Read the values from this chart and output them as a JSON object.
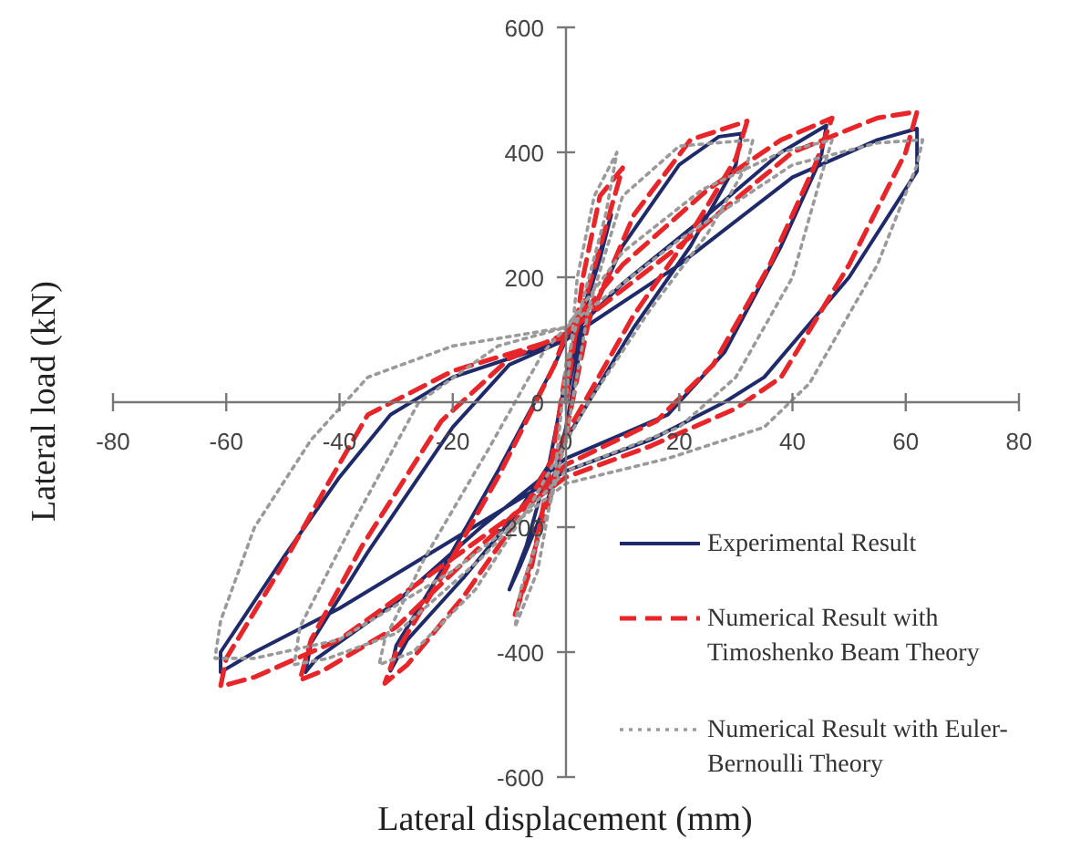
{
  "chart_data": {
    "type": "line",
    "xlabel": "Lateral displacement (mm)",
    "ylabel": "Lateral load (kN)",
    "xlim": [
      -80,
      80
    ],
    "ylim": [
      -600,
      600
    ],
    "xticks": [
      -80,
      -60,
      -40,
      -20,
      0,
      20,
      40,
      60,
      80
    ],
    "yticks": [
      -600,
      -400,
      -200,
      0,
      200,
      400,
      600
    ],
    "grid": false,
    "legend": "bottom right",
    "marker": "none",
    "series": [
      {
        "name": "Experimental Result",
        "color": "#1f2a6b",
        "line_style": "solid",
        "x": [
          0,
          4,
          8,
          6,
          2,
          0,
          -3,
          -7,
          -10,
          -8,
          -3,
          0,
          3,
          10,
          20,
          27,
          31,
          30,
          22,
          12,
          2,
          -8,
          -18,
          -28,
          -31,
          -30,
          -22,
          -12,
          -2,
          0,
          10,
          25,
          38,
          46,
          45,
          38,
          28,
          18,
          0,
          -15,
          -30,
          -44,
          -46,
          -45,
          -35,
          -20,
          -10,
          0,
          20,
          40,
          55,
          62,
          62,
          50,
          35,
          28,
          15,
          0,
          -20,
          -40,
          -55,
          -61,
          -61,
          -50,
          -40,
          -31,
          -20,
          0
        ],
        "values": [
          0,
          180,
          300,
          230,
          110,
          40,
          -100,
          -230,
          -300,
          -260,
          -150,
          -40,
          110,
          250,
          380,
          425,
          430,
          380,
          250,
          120,
          -30,
          -170,
          -280,
          -380,
          -430,
          -390,
          -270,
          -110,
          60,
          100,
          190,
          300,
          400,
          443,
          390,
          250,
          80,
          -20,
          -90,
          -200,
          -320,
          -410,
          -432,
          -385,
          -240,
          -40,
          60,
          100,
          220,
          360,
          420,
          438,
          370,
          200,
          40,
          0,
          -60,
          -110,
          -220,
          -330,
          -400,
          -432,
          -400,
          -250,
          -120,
          -20,
          40,
          100
        ]
      },
      {
        "name": "Numerical Result with Timoshenko Beam Theory",
        "color": "#e8262a",
        "line_style": "dashed",
        "x": [
          0,
          3,
          6,
          10,
          7,
          2,
          0,
          -3,
          -6,
          -9,
          -7,
          -3,
          0,
          4,
          12,
          22,
          32,
          30,
          22,
          12,
          2,
          -8,
          -18,
          -28,
          -32,
          -30,
          -22,
          -12,
          -2,
          0,
          10,
          25,
          38,
          47,
          44,
          36,
          26,
          16,
          0,
          -15,
          -30,
          -43,
          -47,
          -45,
          -36,
          -22,
          -10,
          0,
          20,
          40,
          55,
          62,
          60,
          50,
          38,
          30,
          15,
          0,
          -20,
          -40,
          -55,
          -61,
          -60,
          -50,
          -42,
          -35,
          -20,
          0
        ],
        "values": [
          0,
          200,
          330,
          375,
          280,
          120,
          50,
          -120,
          -260,
          -340,
          -280,
          -160,
          -50,
          130,
          300,
          420,
          450,
          390,
          270,
          140,
          -20,
          -180,
          -310,
          -420,
          -450,
          -400,
          -280,
          -120,
          60,
          110,
          220,
          340,
          420,
          455,
          380,
          220,
          60,
          -30,
          -100,
          -230,
          -360,
          -430,
          -445,
          -380,
          -230,
          -30,
          70,
          110,
          250,
          400,
          455,
          465,
          400,
          220,
          40,
          -10,
          -70,
          -120,
          -250,
          -380,
          -440,
          -455,
          -410,
          -260,
          -130,
          -20,
          50,
          105
        ]
      },
      {
        "name": "Numerical Result with Euler-Bernoulli Theory",
        "color": "#9a9a9a",
        "line_style": "dotted",
        "x": [
          0,
          2,
          5,
          9,
          7,
          2,
          0,
          -2,
          -5,
          -9,
          -8,
          -3,
          0,
          4,
          10,
          20,
          33,
          32,
          25,
          15,
          4,
          -6,
          -16,
          -27,
          -33,
          -32,
          -25,
          -14,
          -4,
          0,
          10,
          24,
          38,
          47,
          45,
          40,
          30,
          20,
          0,
          -15,
          -30,
          -42,
          -48,
          -47,
          -38,
          -26,
          -12,
          0,
          20,
          40,
          55,
          63,
          62,
          55,
          43,
          35,
          18,
          0,
          -20,
          -40,
          -55,
          -62,
          -61,
          -55,
          -45,
          -35,
          -20,
          0
        ],
        "values": [
          0,
          200,
          330,
          400,
          300,
          130,
          60,
          -120,
          -270,
          -360,
          -300,
          -170,
          -60,
          150,
          330,
          410,
          420,
          380,
          270,
          150,
          0,
          -160,
          -300,
          -400,
          -420,
          -380,
          -250,
          -80,
          80,
          120,
          240,
          340,
          400,
          420,
          360,
          200,
          40,
          -40,
          -110,
          -250,
          -370,
          -410,
          -420,
          -360,
          -200,
          0,
          90,
          120,
          260,
          380,
          415,
          420,
          380,
          220,
          30,
          -40,
          -90,
          -130,
          -270,
          -380,
          -410,
          -410,
          -350,
          -200,
          -60,
          40,
          90,
          120
        ]
      }
    ]
  }
}
